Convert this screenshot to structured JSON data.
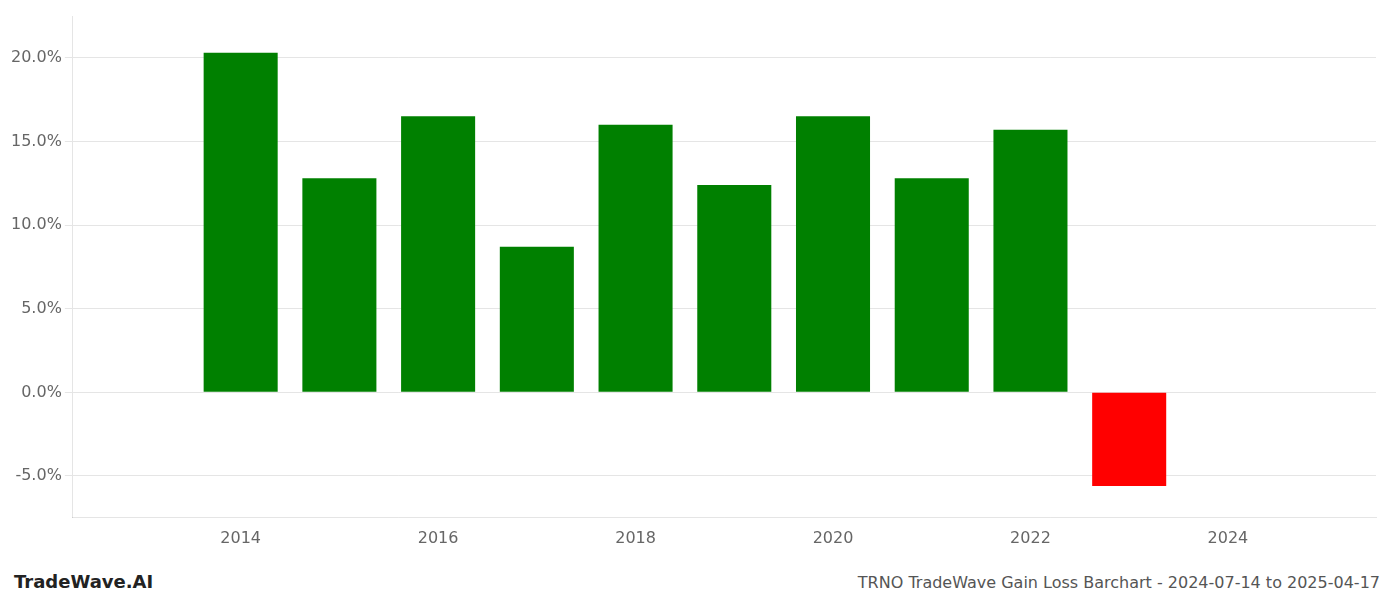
{
  "chart_data": {
    "type": "bar",
    "title": "TRNO TradeWave Gain Loss Barchart - 2024-07-14 to 2025-04-17",
    "annotations": [
      "TradeWave.AI"
    ],
    "x": [
      2014,
      2015,
      2016,
      2017,
      2018,
      2019,
      2020,
      2021,
      2022,
      2023
    ],
    "values": [
      0.203,
      0.128,
      0.165,
      0.087,
      0.16,
      0.124,
      0.165,
      0.128,
      0.157,
      -0.056
    ],
    "colors": [
      "#008000",
      "#008000",
      "#008000",
      "#008000",
      "#008000",
      "#008000",
      "#008000",
      "#008000",
      "#008000",
      "#ff0000"
    ],
    "xlim": [
      2012.3,
      2025.5
    ],
    "xticks": [
      2014,
      2016,
      2018,
      2020,
      2022,
      2024
    ],
    "ylim": [
      -0.075,
      0.225
    ],
    "yticks": [
      {
        "value": -0.05,
        "label": "-5.0%"
      },
      {
        "value": 0.0,
        "label": "0.0%"
      },
      {
        "value": 0.05,
        "label": "5.0%"
      },
      {
        "value": 0.1,
        "label": "10.0%"
      },
      {
        "value": 0.15,
        "label": "15.0%"
      },
      {
        "value": 0.2,
        "label": "20.0%"
      }
    ],
    "grid": true
  }
}
